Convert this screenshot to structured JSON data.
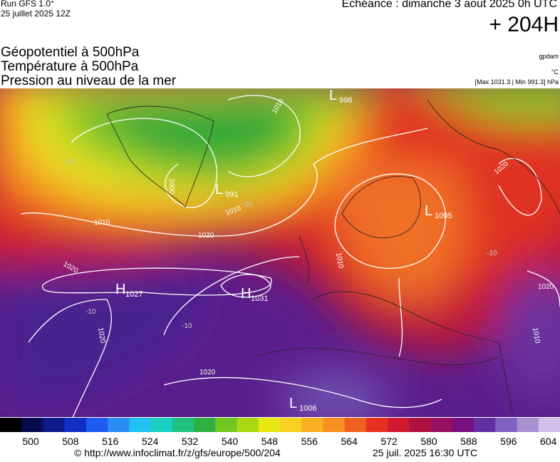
{
  "header": {
    "run": "Run GFS 1.0°",
    "run_date": "25 juillet 2025 12Z",
    "valid": "Echéance : dimanche 3 aout 2025 0h UTC",
    "lead": "+ 204H"
  },
  "fields": [
    "Géopotentiel à 500hPa",
    "Température à 500hPa",
    "Pression au niveau de la mer"
  ],
  "units": {
    "geopotential": "gpdam",
    "temperature": "°C",
    "pressure": "[Max 1031.3 | Min 991.3] hPa"
  },
  "systems": [
    {
      "type": "H",
      "value": 1027
    },
    {
      "type": "H",
      "value": 1031
    },
    {
      "type": "L",
      "value": 998
    },
    {
      "type": "L",
      "value": 991
    },
    {
      "type": "L",
      "value": 1005
    },
    {
      "type": "L",
      "value": 1006
    }
  ],
  "isobar_labels": [
    1010,
    1000,
    1010,
    1020,
    1020,
    1020,
    1020,
    1010,
    1020,
    1010,
    1020,
    1010
  ],
  "isotherm_labels": [
    -20,
    -20,
    -10,
    -10,
    -10
  ],
  "colorbar": {
    "colors": [
      "#000000",
      "#0a0a50",
      "#0c1a8c",
      "#1030c8",
      "#1e5af0",
      "#2a8cf5",
      "#20c0f0",
      "#18d0c0",
      "#20c080",
      "#30b040",
      "#70c820",
      "#a8d810",
      "#e8e810",
      "#f8d020",
      "#f8b020",
      "#f89020",
      "#f06020",
      "#e83020",
      "#d01830",
      "#b01040",
      "#981060",
      "#781080",
      "#6030a0",
      "#8060c0",
      "#a890d0",
      "#d0c0e8"
    ],
    "labels": [
      500,
      508,
      516,
      524,
      532,
      540,
      548,
      556,
      564,
      572,
      580,
      588,
      596,
      604
    ]
  },
  "footer": {
    "source": "© http://www.infoclimat.fr/z/gfs/europe/500/204",
    "generated": "25 juil. 2025 16:30 UTC"
  }
}
